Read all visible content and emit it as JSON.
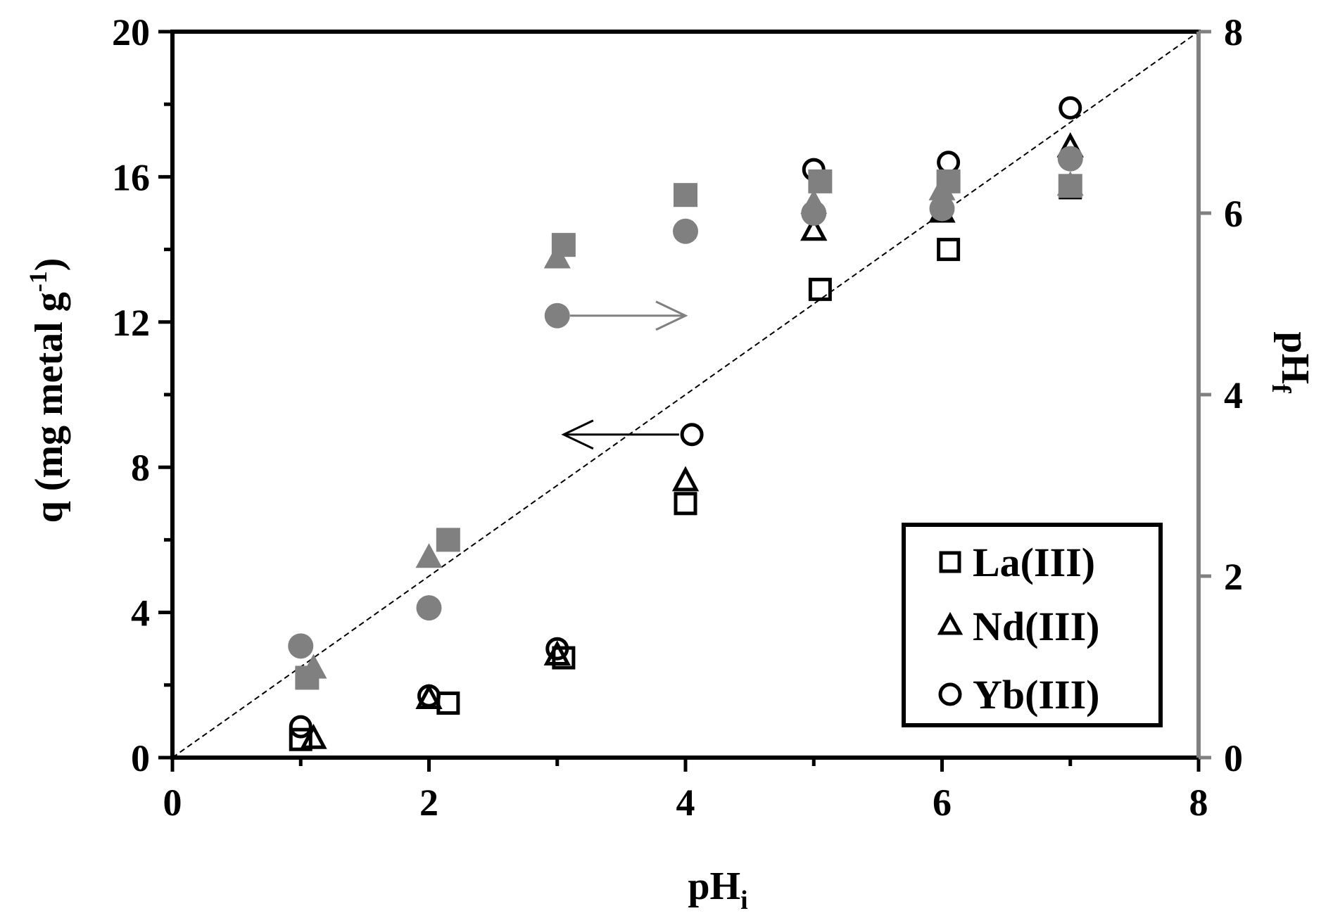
{
  "chart_data": {
    "type": "scatter",
    "xlabel": "pH",
    "xlabel_sub": "i",
    "ylabel": "q (mg metal g",
    "ylabel_sup": "-1",
    "ylabel_end": ")",
    "y2label": "pH",
    "y2label_sub": "f",
    "xlim": [
      0,
      8
    ],
    "ylim": [
      0,
      20
    ],
    "y2lim": [
      0,
      8
    ],
    "xticks": [
      "0",
      "2",
      "4",
      "6",
      "8"
    ],
    "yticks": [
      "0",
      "4",
      "8",
      "12",
      "16",
      "20"
    ],
    "y2ticks": [
      "0",
      "2",
      "4",
      "6",
      "8"
    ],
    "grid": false,
    "legend_position": "bottom-right",
    "legend": [
      {
        "name": "La(III)",
        "marker": "square"
      },
      {
        "name": "Nd(III)",
        "marker": "triangle"
      },
      {
        "name": "Yb(III)",
        "marker": "circle"
      }
    ],
    "colors": {
      "q_series": "#000000",
      "phf_series": "#808080",
      "axis_right": "#808080"
    },
    "series": [
      {
        "name": "La(III)",
        "axis": "left",
        "marker": "square",
        "filled": false,
        "points": [
          [
            1.0,
            0.5
          ],
          [
            2.15,
            1.5
          ],
          [
            3.05,
            2.75
          ],
          [
            4.0,
            7.0
          ],
          [
            5.05,
            12.9
          ],
          [
            6.05,
            14.0
          ],
          [
            7.0,
            15.7
          ]
        ]
      },
      {
        "name": "Nd(III)",
        "axis": "left",
        "marker": "triangle",
        "filled": false,
        "points": [
          [
            1.1,
            0.5
          ],
          [
            2.0,
            1.6
          ],
          [
            3.0,
            2.8
          ],
          [
            4.0,
            7.6
          ],
          [
            5.0,
            14.5
          ],
          [
            6.0,
            15.0
          ],
          [
            7.0,
            16.8
          ]
        ]
      },
      {
        "name": "Yb(III)",
        "axis": "left",
        "marker": "circle",
        "filled": false,
        "points": [
          [
            1.0,
            0.85
          ],
          [
            2.0,
            1.7
          ],
          [
            3.0,
            3.0
          ],
          [
            4.05,
            8.9
          ],
          [
            5.0,
            16.2
          ],
          [
            6.05,
            16.4
          ],
          [
            7.0,
            17.9
          ]
        ]
      },
      {
        "name": "La(III)",
        "axis": "right",
        "marker": "square",
        "filled": true,
        "points": [
          [
            1.05,
            0.88
          ],
          [
            2.15,
            2.4
          ],
          [
            3.05,
            5.65
          ],
          [
            4.0,
            6.2
          ],
          [
            5.05,
            6.35
          ],
          [
            6.05,
            6.35
          ],
          [
            7.0,
            6.3
          ]
        ]
      },
      {
        "name": "Nd(III)",
        "axis": "right",
        "marker": "triangle",
        "filled": true,
        "points": [
          [
            1.1,
            0.98
          ],
          [
            2.0,
            2.2
          ],
          [
            3.0,
            5.5
          ],
          [
            5.0,
            6.1
          ],
          [
            6.0,
            6.25
          ],
          [
            7.0,
            6.3
          ]
        ]
      },
      {
        "name": "Yb(III)",
        "axis": "right",
        "marker": "circle",
        "filled": true,
        "points": [
          [
            1.0,
            1.23
          ],
          [
            2.0,
            1.65
          ],
          [
            3.0,
            4.87
          ],
          [
            4.0,
            5.8
          ],
          [
            5.0,
            6.0
          ],
          [
            6.0,
            6.05
          ],
          [
            7.0,
            6.6
          ]
        ]
      }
    ],
    "reference_line": {
      "axis": "right",
      "from": [
        0,
        0
      ],
      "to": [
        8,
        8
      ],
      "style": "dashed"
    },
    "annotations": [
      {
        "type": "arrow",
        "direction": "right",
        "axis": "right",
        "from": [
          3.1,
          4.87
        ],
        "to": [
          4.0,
          4.87
        ],
        "color": "#808080"
      },
      {
        "type": "arrow",
        "direction": "left",
        "axis": "left",
        "from": [
          3.95,
          8.9
        ],
        "to": [
          3.05,
          8.9
        ],
        "color": "#000000"
      }
    ]
  }
}
